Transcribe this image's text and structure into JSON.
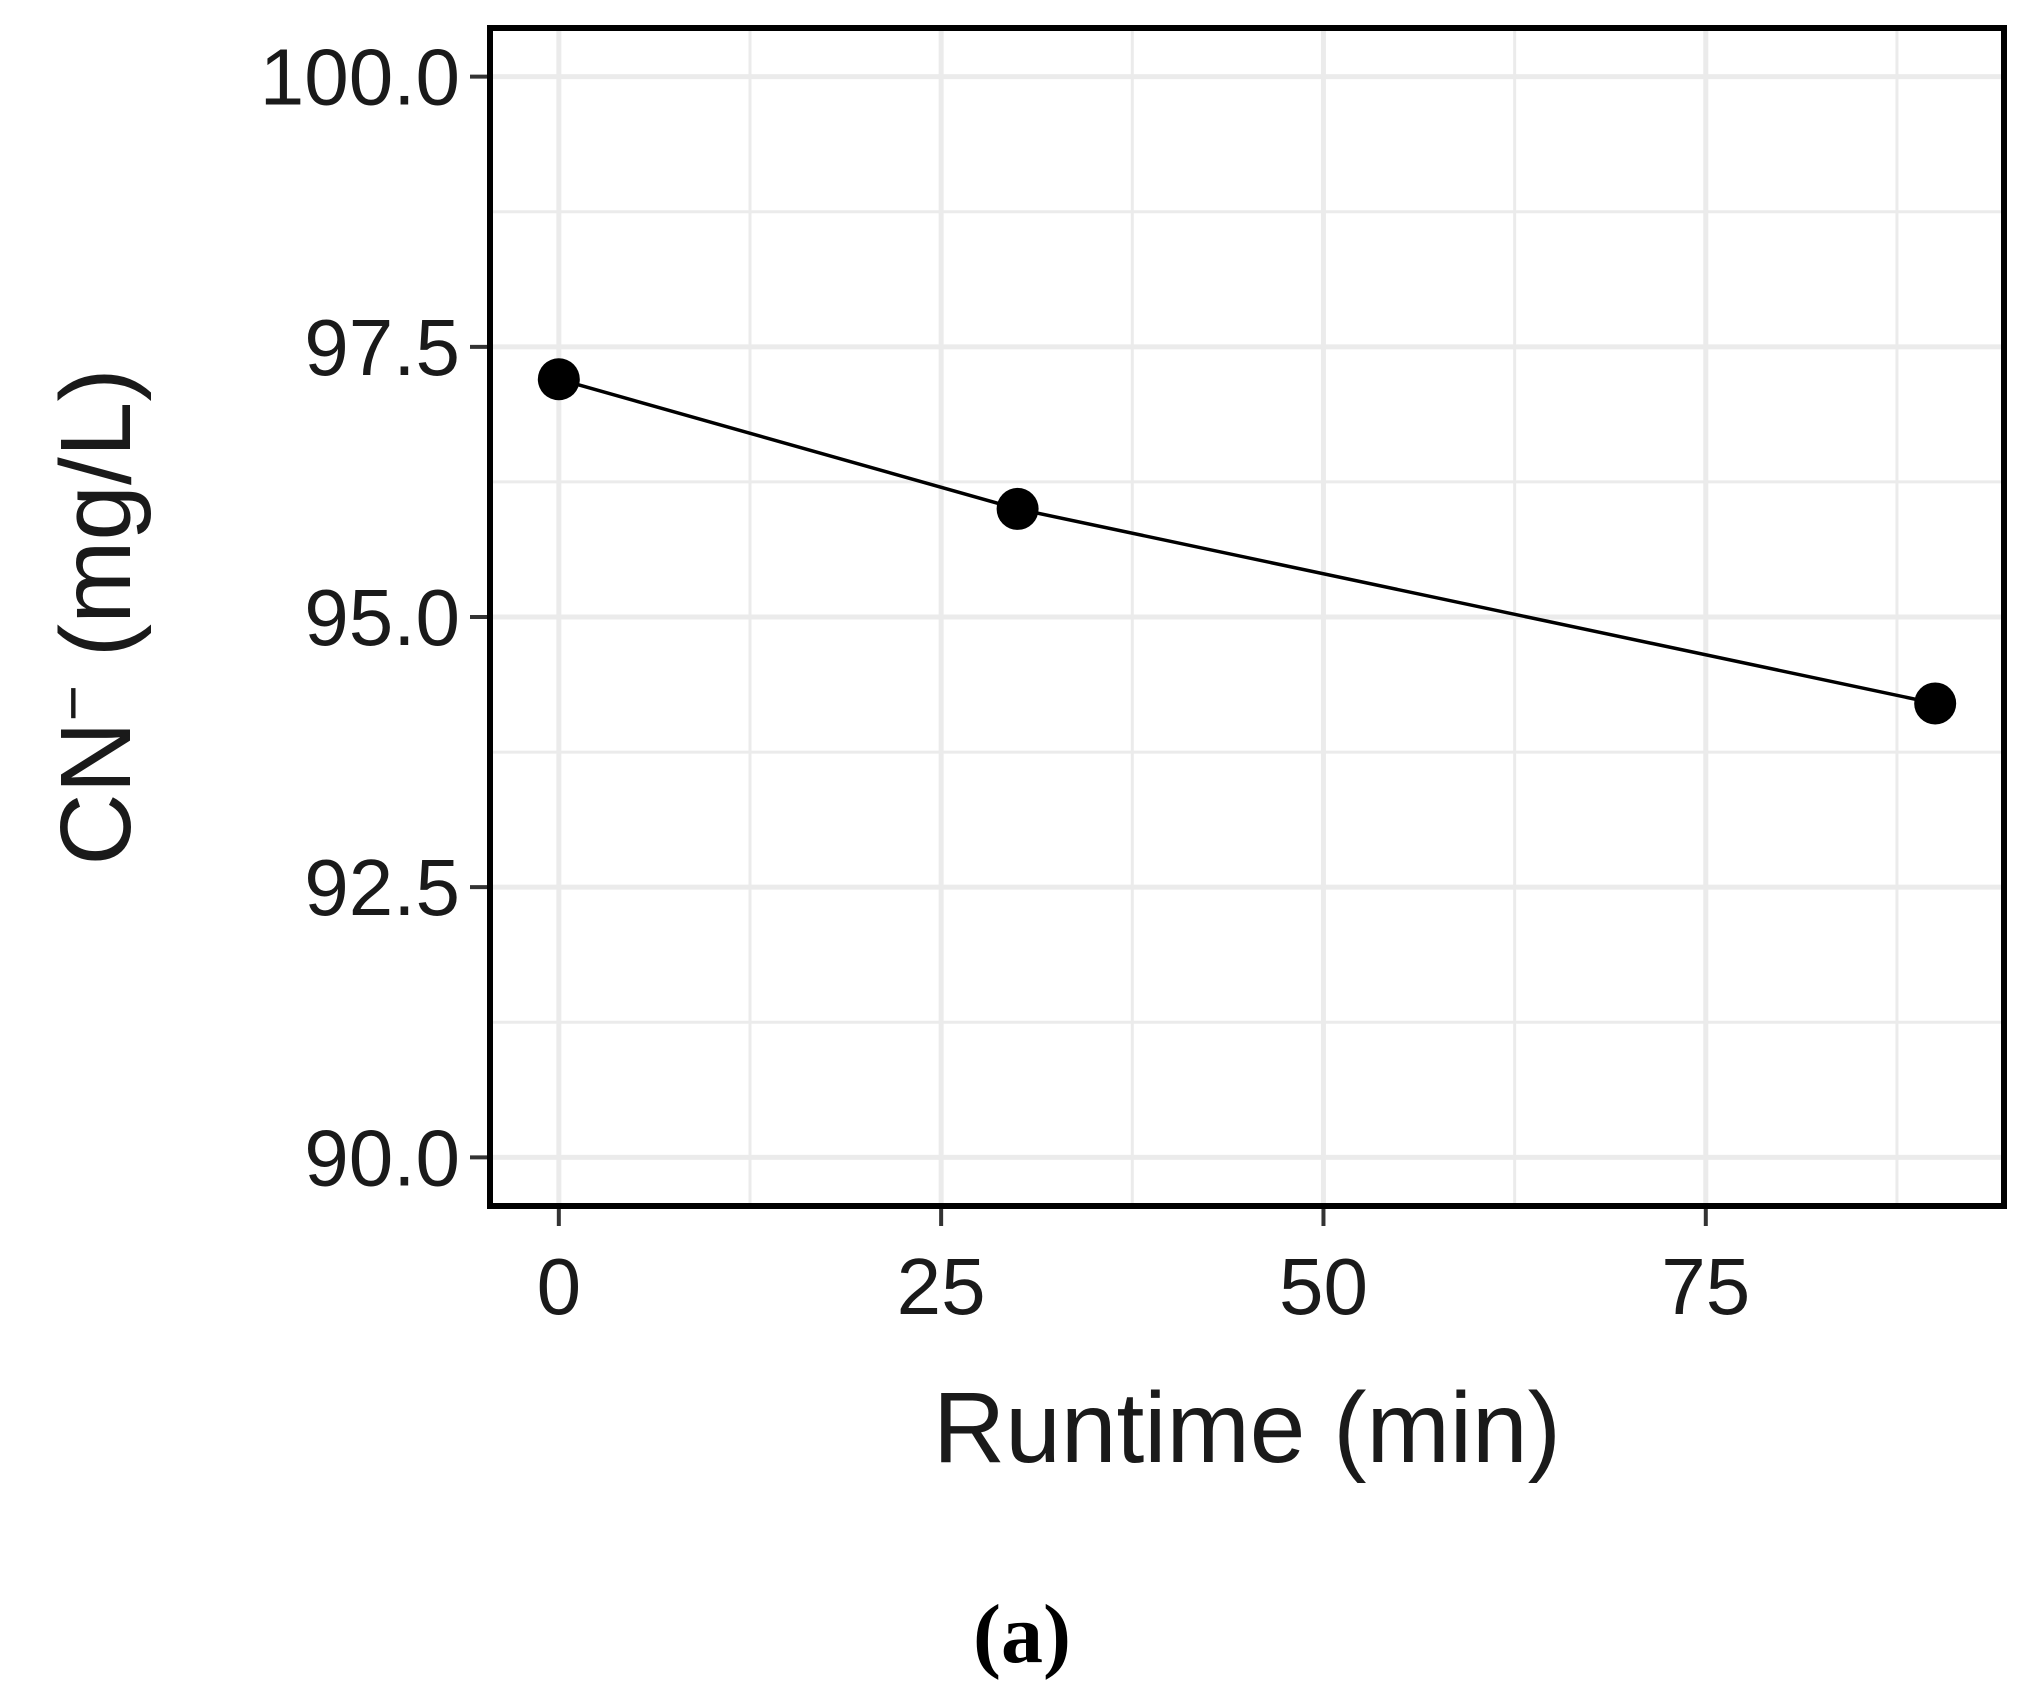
{
  "chart_data": {
    "type": "line",
    "title": "",
    "xlabel": "Runtime (min)",
    "ylabel_main": "CN",
    "ylabel_superscript": "−",
    "ylabel_unit": " (mg/L)",
    "x": [
      0,
      30,
      90
    ],
    "series": [
      {
        "values": [
          97.2,
          96.0,
          94.2
        ]
      }
    ],
    "xlim": [
      -4.5,
      94.5
    ],
    "ylim": [
      89.55,
      100.45
    ],
    "xticks": [
      0,
      25,
      50,
      75
    ],
    "xtick_labels": [
      "0",
      "25",
      "50",
      "75"
    ],
    "yticks": [
      90.0,
      92.5,
      95.0,
      97.5,
      100.0
    ],
    "ytick_labels": [
      "90.0",
      "92.5",
      "95.0",
      "97.5",
      "100.0"
    ],
    "x_minor_grid": [
      12.5,
      37.5,
      62.5,
      87.5
    ],
    "y_minor_grid": [
      91.25,
      93.75,
      96.25,
      98.75
    ],
    "grid": true,
    "marker": "filled-circle",
    "colors": {
      "line": "#000000",
      "marker": "#000000",
      "grid": "#ebebeb",
      "frame": "#000000",
      "text": "#1a1a1a"
    }
  },
  "panel_label": "(a)"
}
